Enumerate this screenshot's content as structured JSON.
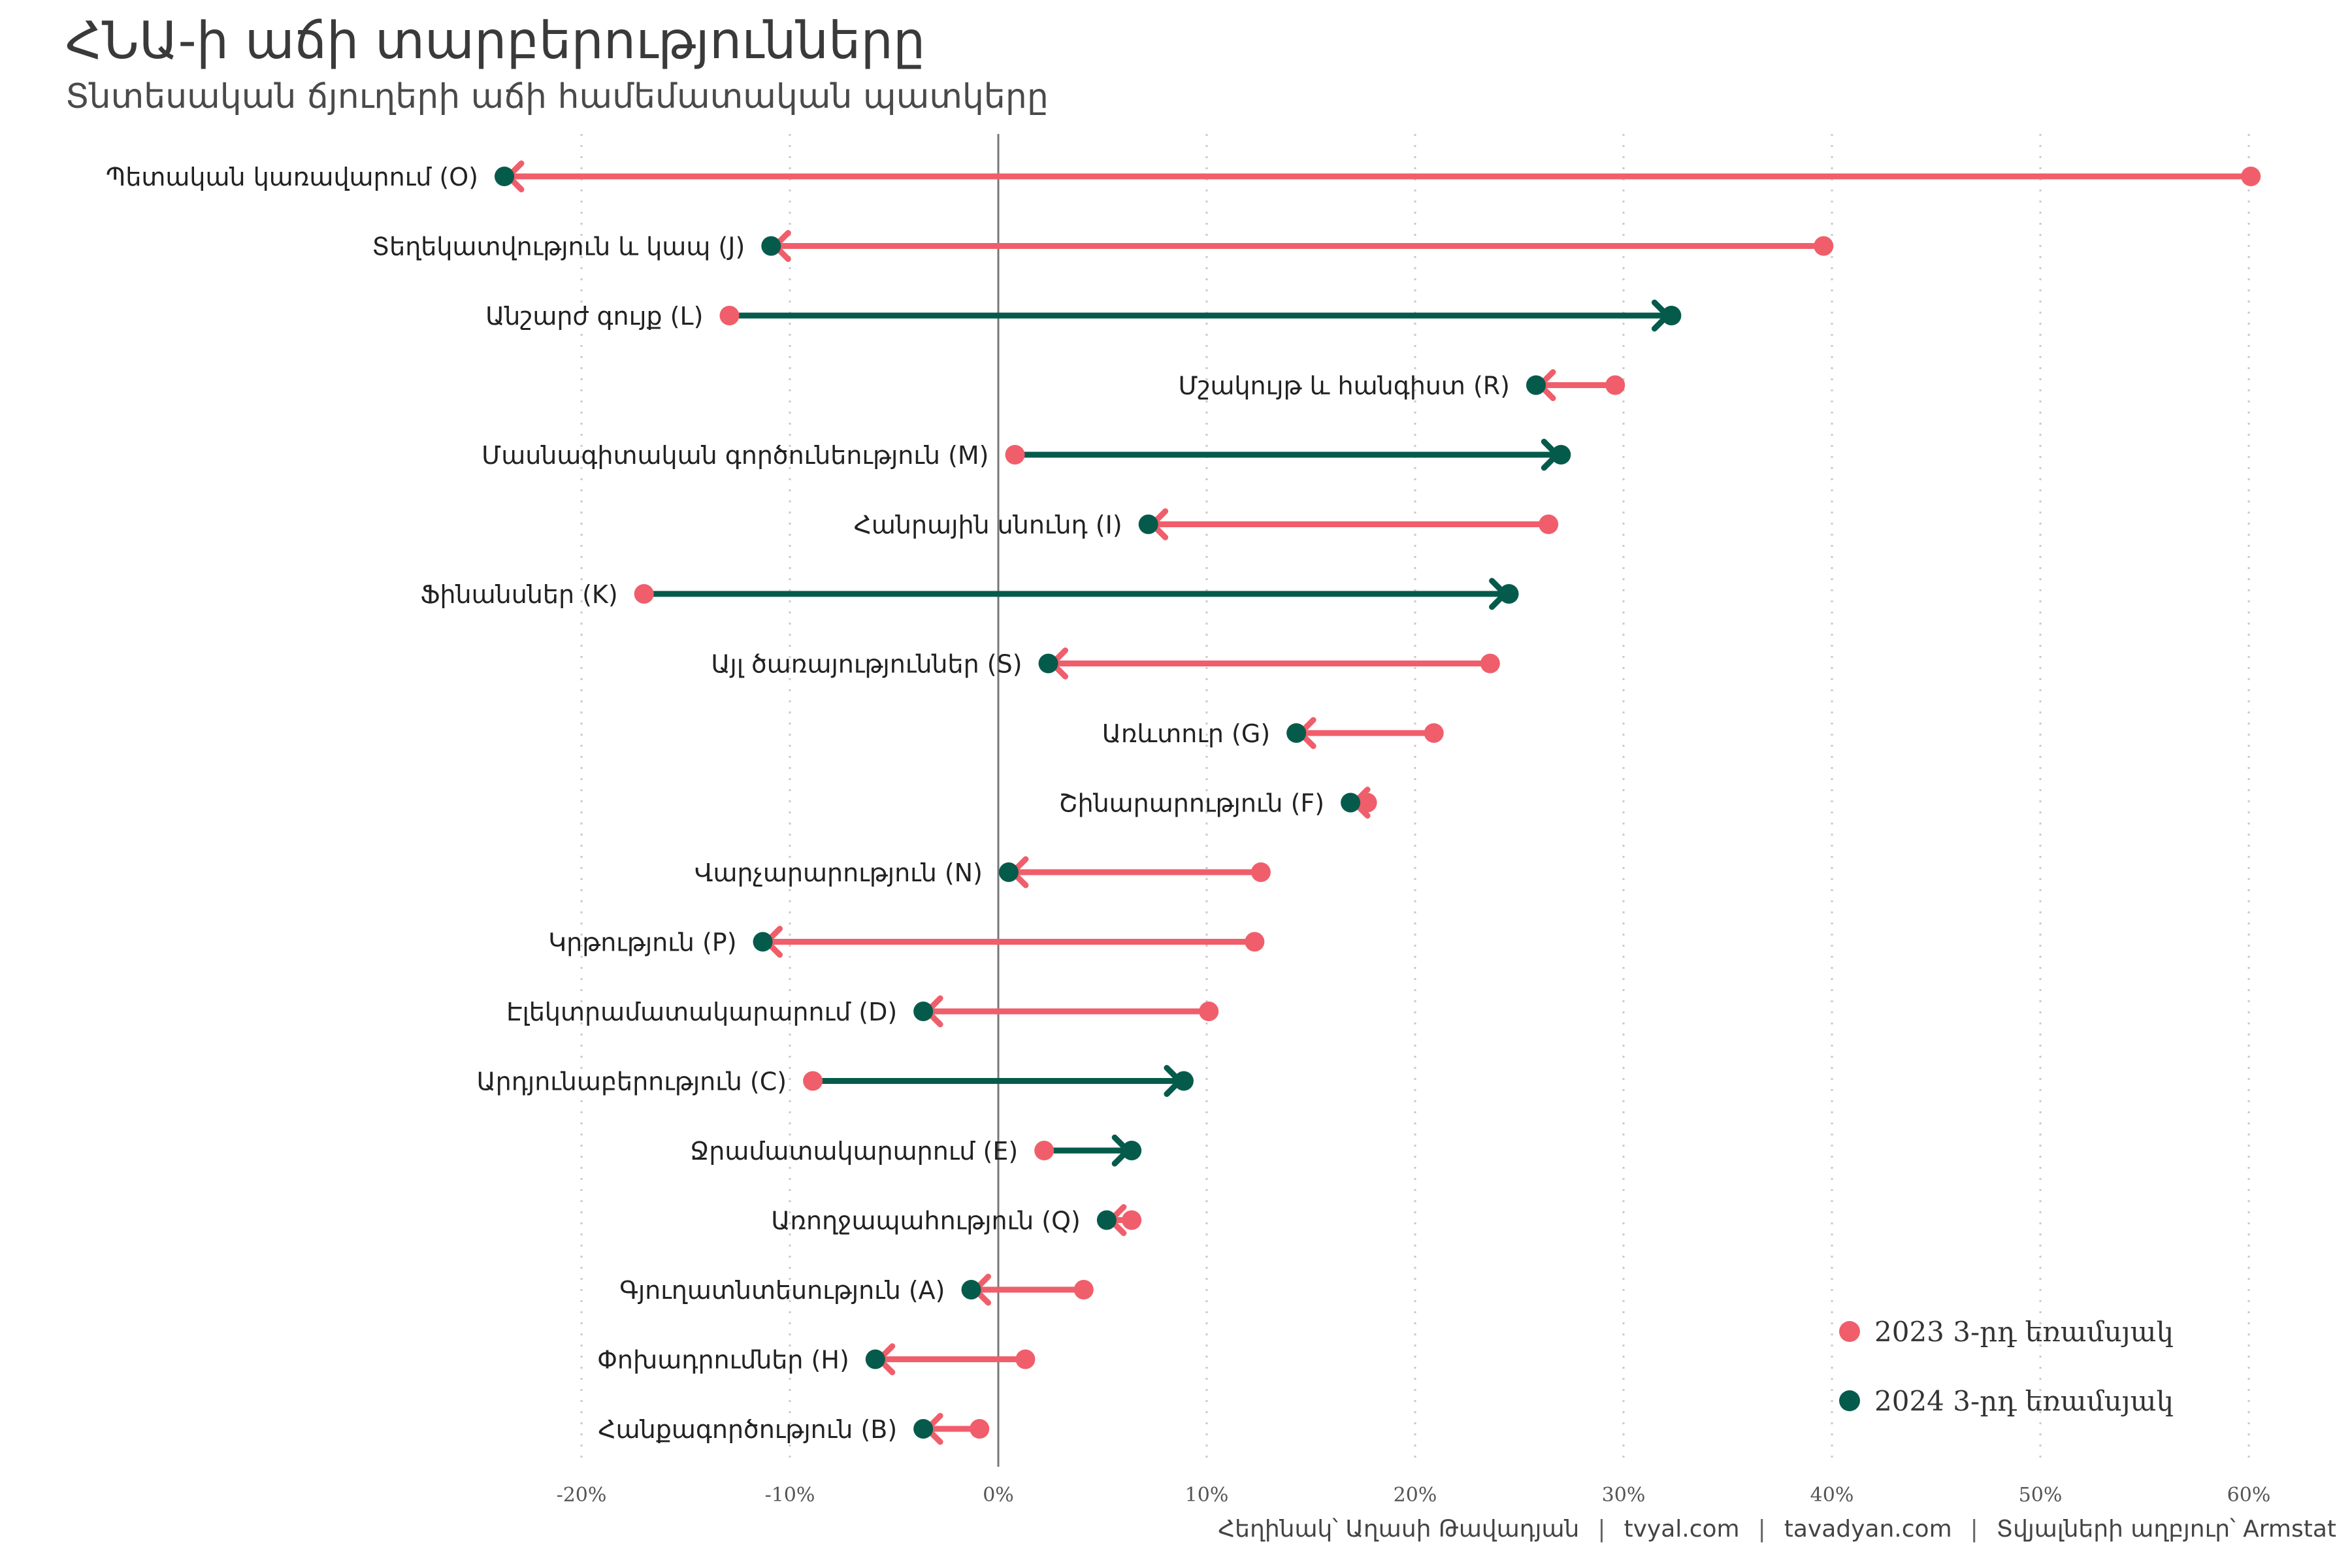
{
  "title": "ՀՆԱ-ի աճի տարբերությունները",
  "subtitle": "Տնտեսական ճյուղերի աճի համեմատական պատկերը",
  "caption": {
    "author": "Հեղինակ՝ Աղասի Թավադյան",
    "site1": "tvyal.com",
    "site2": "tavadyan.com",
    "source": "Տվյալների աղբյուր՝ Armstat",
    "separator": "|"
  },
  "colors": {
    "y2023": "#F05E6B",
    "y2024": "#055B4B"
  },
  "legend": [
    {
      "label": "2023 3-րդ եռամսյակ",
      "color": "#F05E6B"
    },
    {
      "label": "2024 3-րդ եռամսյակ",
      "color": "#055B4B"
    }
  ],
  "chart_data": {
    "type": "dumbbell",
    "xlim": [
      -22,
      61
    ],
    "x_ticks": [
      -20,
      -10,
      0,
      10,
      20,
      30,
      40,
      50,
      60
    ],
    "x_tick_labels": [
      "-20%",
      "-10%",
      "0%",
      "10%",
      "20%",
      "30%",
      "40%",
      "50%",
      "60%"
    ],
    "grid": "vertical dotted",
    "legend_position": "bottom-right",
    "series_names": [
      "2023 3-րդ եռամսյակ",
      "2024 3-րդ եռամսյակ"
    ],
    "categories": [
      {
        "label": "Պետական կառավարում (O)",
        "v2023": 60.1,
        "v2024": -23.7
      },
      {
        "label": "Տեղեկատվություն և կապ (J)",
        "v2023": 39.6,
        "v2024": -10.9
      },
      {
        "label": "Անշարժ գույք (L)",
        "v2023": -12.9,
        "v2024": 32.3
      },
      {
        "label": "Մշակույթ և հանգիստ (R)",
        "v2023": 29.6,
        "v2024": 25.8
      },
      {
        "label": "Մասնագիտական գործունեություն (M)",
        "v2023": 0.8,
        "v2024": 27.0
      },
      {
        "label": "Հանրային սնունդ (I)",
        "v2023": 26.4,
        "v2024": 7.2
      },
      {
        "label": "Ֆինանսներ (K)",
        "v2023": -17.0,
        "v2024": 24.5
      },
      {
        "label": "Այլ ծառայություններ (S)",
        "v2023": 23.6,
        "v2024": 2.4
      },
      {
        "label": "Առևտուր (G)",
        "v2023": 20.9,
        "v2024": 14.3
      },
      {
        "label": "Շինարարություն (F)",
        "v2023": 17.7,
        "v2024": 16.9
      },
      {
        "label": "Վարչարարություն (N)",
        "v2023": 12.6,
        "v2024": 0.5
      },
      {
        "label": "Կրթություն (P)",
        "v2023": 12.3,
        "v2024": -11.3
      },
      {
        "label": "Էլեկտրամատակարարում (D)",
        "v2023": 10.1,
        "v2024": -3.6
      },
      {
        "label": "Արդյունաբերություն (C)",
        "v2023": -8.9,
        "v2024": 8.9
      },
      {
        "label": "Ջրամատակարարում (E)",
        "v2023": 2.2,
        "v2024": 6.4
      },
      {
        "label": "Առողջապահություն (Q)",
        "v2023": 6.4,
        "v2024": 5.2
      },
      {
        "label": "Գյուղատնտեսություն (A)",
        "v2023": 4.1,
        "v2024": -1.3
      },
      {
        "label": "Փոխադրումներ (H)",
        "v2023": 1.3,
        "v2024": -5.9
      },
      {
        "label": "Հանքագործություն (B)",
        "v2023": -0.9,
        "v2024": -3.6
      }
    ]
  }
}
